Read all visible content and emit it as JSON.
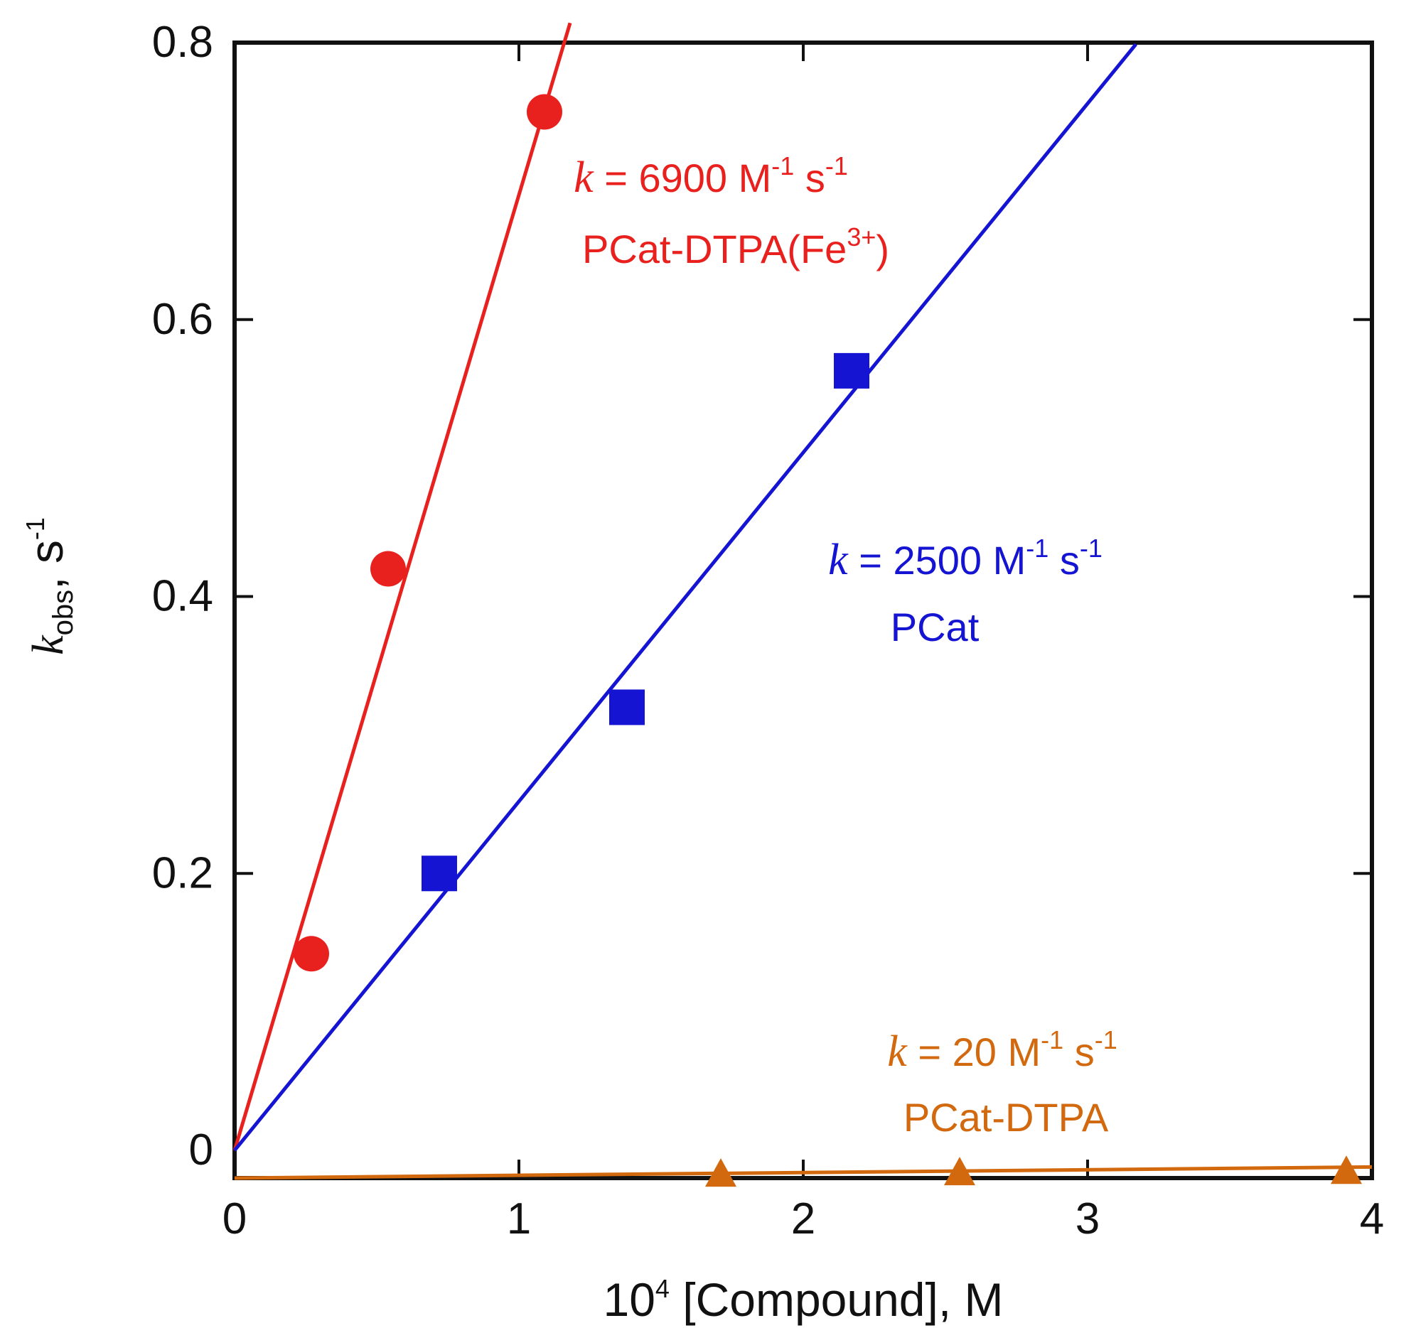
{
  "chart_data": {
    "type": "scatter",
    "title": "",
    "xlabel": "10⁴ [Compound], M",
    "xlabel_parts": {
      "base": "10",
      "exp": "4",
      "rest": " [Compound], M"
    },
    "ylabel_parts": {
      "k": "k",
      "sub": "obs",
      "rest": ", s",
      "exp": "-1"
    },
    "xlim": [
      0,
      4
    ],
    "ylim": [
      -0.02,
      0.8
    ],
    "xticks": [
      0,
      1,
      2,
      3,
      4
    ],
    "xtick_labels": [
      "0",
      "1",
      "2",
      "3",
      "4"
    ],
    "yticks": [
      0,
      0.2,
      0.4,
      0.6,
      0.8
    ],
    "ytick_labels": [
      "0",
      "0.2",
      "0.4",
      "0.6",
      "0.8"
    ],
    "grid": false,
    "series": [
      {
        "name": "PCat-DTPA(Fe3+)",
        "marker": "circle",
        "color": "#e8211e",
        "x": [
          0.27,
          0.54,
          1.09
        ],
        "y": [
          0.142,
          0.42,
          0.75
        ],
        "fit_slope": 0.69,
        "fit_x_end": 1.18,
        "annotation": {
          "k": "k",
          "eq": " = 6900 M",
          "exp1": "-1",
          "mid": " s",
          "exp2": "-1",
          "label_base": "PCat-DTPA(Fe",
          "label_sup": "3+",
          "label_end": ")"
        }
      },
      {
        "name": "PCat",
        "marker": "square",
        "color": "#1414d2",
        "x": [
          0.72,
          1.38,
          2.17
        ],
        "y": [
          0.2,
          0.32,
          0.563
        ],
        "fit_slope": 0.252,
        "fit_x_end": 3.17,
        "annotation": {
          "k": "k",
          "eq": " = 2500 M",
          "exp1": "-1",
          "mid": " s",
          "exp2": "-1",
          "label_base": "PCat",
          "label_sup": "",
          "label_end": ""
        }
      },
      {
        "name": "PCat-DTPA",
        "marker": "triangle",
        "color": "#d2690e",
        "x": [
          1.71,
          2.55,
          3.91
        ],
        "y": [
          -0.018,
          -0.017,
          -0.016
        ],
        "fit_slope": 0.002,
        "fit_intercept": -0.02,
        "fit_x_end": 4.0,
        "annotation": {
          "k": "k",
          "eq": " = 20 M",
          "exp1": "-1",
          "mid": " s",
          "exp2": "-1",
          "label_base": "PCat-DTPA",
          "label_sup": "",
          "label_end": ""
        }
      }
    ]
  }
}
